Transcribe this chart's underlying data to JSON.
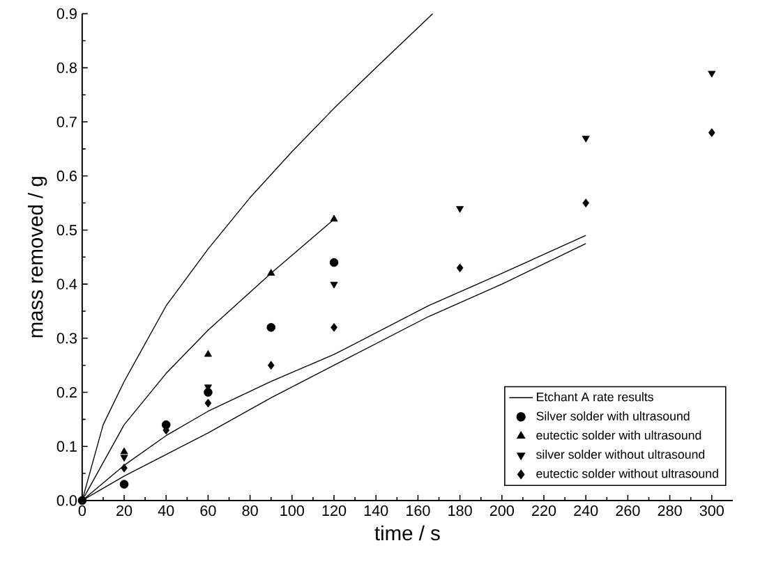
{
  "chart_data": {
    "type": "scatter",
    "xlabel": "time / s",
    "ylabel": "mass removed / g",
    "xlim": [
      0,
      310
    ],
    "ylim": [
      0,
      0.9
    ],
    "xticks": [
      0,
      20,
      40,
      60,
      80,
      100,
      120,
      140,
      160,
      180,
      200,
      220,
      240,
      260,
      280,
      300
    ],
    "yticks": [
      {
        "value": 0,
        "label": "0.0"
      },
      {
        "value": 0.1,
        "label": "0.1"
      },
      {
        "value": 0.2,
        "label": "0.2"
      },
      {
        "value": 0.3,
        "label": "0.3"
      },
      {
        "value": 0.4,
        "label": "0.4"
      },
      {
        "value": 0.5,
        "label": "0.5"
      },
      {
        "value": 0.6,
        "label": "0.6"
      },
      {
        "value": 0.7,
        "label": "0.7"
      },
      {
        "value": 0.8,
        "label": "0.8"
      },
      {
        "value": 0.9,
        "label": "0.9"
      }
    ],
    "grid": false,
    "legend": "bottom right",
    "series": [
      {
        "name": "Etchant A rate results",
        "type": "line",
        "marker": "none",
        "color": "#000000",
        "x": [
          0,
          10,
          20,
          40,
          60,
          80,
          100,
          120,
          140,
          167
        ],
        "values": [
          0,
          0.14,
          0.22,
          0.36,
          0.465,
          0.56,
          0.645,
          0.725,
          0.8,
          0.9
        ]
      },
      {
        "type": "line",
        "marker": "none",
        "color": "#000000",
        "x": [
          0,
          20,
          40,
          60,
          90,
          120
        ],
        "values": [
          0,
          0.14,
          0.235,
          0.315,
          0.42,
          0.52
        ]
      },
      {
        "type": "line",
        "marker": "none",
        "color": "#000000",
        "x": [
          0,
          20,
          40,
          60,
          90,
          120,
          165,
          200,
          240
        ],
        "values": [
          0,
          0.065,
          0.12,
          0.165,
          0.22,
          0.27,
          0.36,
          0.42,
          0.49
        ]
      },
      {
        "type": "line",
        "marker": "none",
        "color": "#000000",
        "x": [
          0,
          20,
          40,
          60,
          90,
          120,
          165,
          200,
          240
        ],
        "values": [
          0,
          0.045,
          0.085,
          0.125,
          0.19,
          0.25,
          0.34,
          0.4,
          0.475
        ]
      },
      {
        "name": "Silver solder with ultrasound",
        "marker": "circle",
        "color": "#000000",
        "x": [
          0,
          20,
          40,
          60,
          90,
          120
        ],
        "values": [
          0,
          0.03,
          0.14,
          0.2,
          0.32,
          0.44
        ]
      },
      {
        "name": "eutectic solder with ultrasound",
        "marker": "triangle",
        "color": "#000000",
        "x": [
          20,
          60,
          90,
          120
        ],
        "values": [
          0.09,
          0.27,
          0.42,
          0.52
        ]
      },
      {
        "name": "silver solder without ultrasound",
        "marker": "triangle_down",
        "color": "#000000",
        "x": [
          20,
          60,
          90,
          120,
          180,
          240,
          300
        ],
        "values": [
          0.08,
          0.21,
          0.32,
          0.4,
          0.54,
          0.67,
          0.79
        ]
      },
      {
        "name": "eutectic solder without ultrasound",
        "marker": "diamond",
        "color": "#000000",
        "x": [
          20,
          40,
          60,
          90,
          120,
          180,
          240,
          300
        ],
        "values": [
          0.06,
          0.13,
          0.18,
          0.25,
          0.32,
          0.43,
          0.55,
          0.68
        ]
      }
    ]
  }
}
